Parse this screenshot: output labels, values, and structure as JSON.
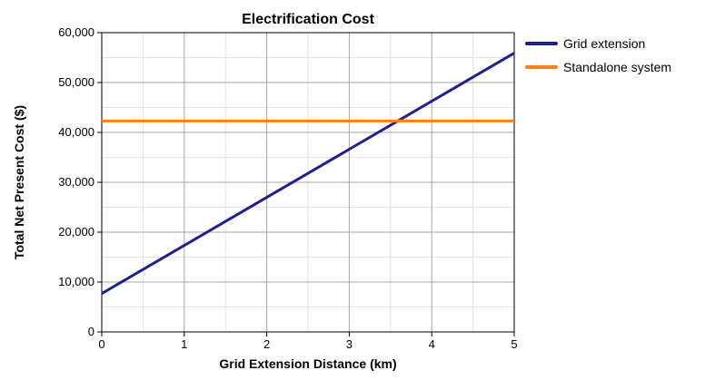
{
  "chart_data": {
    "type": "line",
    "title": "Electrification Cost",
    "xlabel": "Grid Extension Distance (km)",
    "ylabel": "Total Net Present Cost ($)",
    "xlim": [
      0,
      5
    ],
    "ylim": [
      0,
      60000
    ],
    "x_ticks": [
      0,
      1,
      2,
      3,
      4,
      5
    ],
    "x_tick_labels": [
      "0",
      "1",
      "2",
      "3",
      "4",
      "5"
    ],
    "y_ticks": [
      0,
      10000,
      20000,
      30000,
      40000,
      50000,
      60000
    ],
    "y_tick_labels": [
      "0",
      "10,000",
      "20,000",
      "30,000",
      "40,000",
      "50,000",
      "60,000"
    ],
    "grid": true,
    "legend_position": "right",
    "series": [
      {
        "name": "Grid extension",
        "color": "#1f1f8f",
        "x": [
          0,
          5
        ],
        "y": [
          7700,
          55900
        ]
      },
      {
        "name": "Standalone system",
        "color": "#ff7f1f",
        "x": [
          0,
          5
        ],
        "y": [
          42300,
          42300
        ]
      }
    ]
  }
}
